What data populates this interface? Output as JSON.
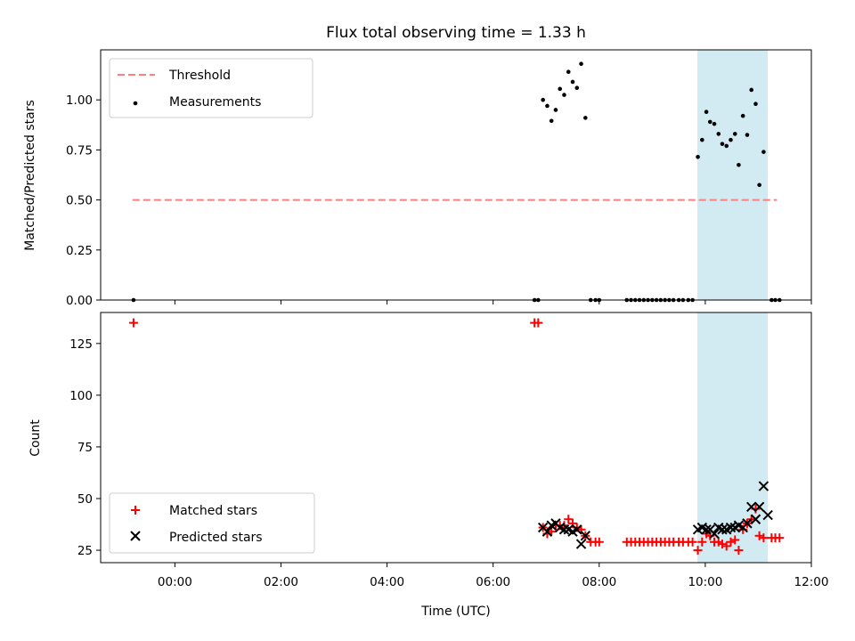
{
  "chart_data": {
    "type": "scatter",
    "title": "Flux total observing time = 1.33 h",
    "x_unit": "hours UTC",
    "xlim": [
      -1.4,
      12.0
    ],
    "x_ticks": [
      {
        "value": 0,
        "label": "00:00"
      },
      {
        "value": 2,
        "label": "02:00"
      },
      {
        "value": 4,
        "label": "04:00"
      },
      {
        "value": 6,
        "label": "06:00"
      },
      {
        "value": 8,
        "label": "08:00"
      },
      {
        "value": 10,
        "label": "10:00"
      },
      {
        "value": 12,
        "label": "12:00"
      }
    ],
    "xlabel": "Time (UTC)",
    "shaded_interval": {
      "x_start": 9.85,
      "x_end": 11.18,
      "color": "#add8e6"
    },
    "top_panel": {
      "ylabel": "Matched/Predicted stars",
      "ylim": [
        0,
        1.25
      ],
      "y_ticks": [
        "0.00",
        "0.25",
        "0.50",
        "0.75",
        "1.00"
      ],
      "y_tick_values": [
        0,
        0.25,
        0.5,
        0.75,
        1.0
      ],
      "legend": {
        "position": "upper left",
        "entries": [
          "Threshold",
          "Measurements"
        ]
      },
      "threshold": {
        "name": "Threshold",
        "y": 0.5,
        "x_start": -0.8,
        "x_end": 11.35,
        "color": "#ff7f7f",
        "style": "dashed"
      },
      "measurements": {
        "name": "Measurements",
        "color": "#000000",
        "points": [
          [
            -0.78,
            0.0
          ],
          [
            6.78,
            0.0
          ],
          [
            6.85,
            0.0
          ],
          [
            6.94,
            1.0
          ],
          [
            7.02,
            0.97
          ],
          [
            7.1,
            0.895
          ],
          [
            7.18,
            0.95
          ],
          [
            7.26,
            1.055
          ],
          [
            7.34,
            1.025
          ],
          [
            7.42,
            1.14
          ],
          [
            7.5,
            1.09
          ],
          [
            7.58,
            1.06
          ],
          [
            7.66,
            1.18
          ],
          [
            7.74,
            0.91
          ],
          [
            7.84,
            0.0
          ],
          [
            7.93,
            0.0
          ],
          [
            8.0,
            0.0
          ],
          [
            8.52,
            0.0
          ],
          [
            8.6,
            0.0
          ],
          [
            8.68,
            0.0
          ],
          [
            8.76,
            0.0
          ],
          [
            8.84,
            0.0
          ],
          [
            8.92,
            0.0
          ],
          [
            9.0,
            0.0
          ],
          [
            9.08,
            0.0
          ],
          [
            9.16,
            0.0
          ],
          [
            9.24,
            0.0
          ],
          [
            9.32,
            0.0
          ],
          [
            9.4,
            0.0
          ],
          [
            9.5,
            0.0
          ],
          [
            9.58,
            0.0
          ],
          [
            9.68,
            0.0
          ],
          [
            9.76,
            0.0
          ],
          [
            9.86,
            0.715
          ],
          [
            9.94,
            0.8
          ],
          [
            10.02,
            0.94
          ],
          [
            10.09,
            0.89
          ],
          [
            10.17,
            0.88
          ],
          [
            10.25,
            0.83
          ],
          [
            10.32,
            0.78
          ],
          [
            10.4,
            0.77
          ],
          [
            10.48,
            0.8
          ],
          [
            10.56,
            0.83
          ],
          [
            10.63,
            0.675
          ],
          [
            10.71,
            0.92
          ],
          [
            10.79,
            0.825
          ],
          [
            10.87,
            1.05
          ],
          [
            10.95,
            0.98
          ],
          [
            11.02,
            0.575
          ],
          [
            11.1,
            0.74
          ],
          [
            11.25,
            0.0
          ],
          [
            11.32,
            0.0
          ],
          [
            11.4,
            0.0
          ]
        ]
      }
    },
    "bottom_panel": {
      "ylabel": "Count",
      "ylim": [
        19,
        140
      ],
      "y_ticks": [
        "25",
        "50",
        "75",
        "100",
        "125"
      ],
      "y_tick_values": [
        25,
        50,
        75,
        100,
        125
      ],
      "legend": {
        "position": "lower left",
        "entries": [
          "Matched stars",
          "Predicted stars"
        ]
      },
      "matched": {
        "name": "Matched stars",
        "color": "#ff0000",
        "points": [
          [
            -0.78,
            135
          ],
          [
            6.78,
            135
          ],
          [
            6.85,
            135
          ],
          [
            6.94,
            36
          ],
          [
            7.02,
            33
          ],
          [
            7.1,
            34
          ],
          [
            7.18,
            37
          ],
          [
            7.26,
            37
          ],
          [
            7.34,
            37
          ],
          [
            7.42,
            40
          ],
          [
            7.5,
            38
          ],
          [
            7.58,
            36
          ],
          [
            7.66,
            35
          ],
          [
            7.74,
            32
          ],
          [
            7.84,
            29
          ],
          [
            7.93,
            29
          ],
          [
            8.0,
            29
          ],
          [
            8.52,
            29
          ],
          [
            8.6,
            29
          ],
          [
            8.68,
            29
          ],
          [
            8.76,
            29
          ],
          [
            8.84,
            29
          ],
          [
            8.92,
            29
          ],
          [
            9.0,
            29
          ],
          [
            9.08,
            29
          ],
          [
            9.16,
            29
          ],
          [
            9.24,
            29
          ],
          [
            9.32,
            29
          ],
          [
            9.4,
            29
          ],
          [
            9.5,
            29
          ],
          [
            9.58,
            29
          ],
          [
            9.68,
            29
          ],
          [
            9.76,
            29
          ],
          [
            9.86,
            25
          ],
          [
            9.94,
            29
          ],
          [
            10.02,
            33
          ],
          [
            10.09,
            32
          ],
          [
            10.17,
            29
          ],
          [
            10.25,
            29
          ],
          [
            10.32,
            28
          ],
          [
            10.4,
            27
          ],
          [
            10.48,
            29
          ],
          [
            10.56,
            30
          ],
          [
            10.63,
            25
          ],
          [
            10.71,
            35
          ],
          [
            10.79,
            38
          ],
          [
            10.87,
            40
          ],
          [
            10.95,
            45
          ],
          [
            11.02,
            32
          ],
          [
            11.1,
            31
          ],
          [
            11.25,
            31
          ],
          [
            11.32,
            31
          ],
          [
            11.4,
            31
          ]
        ]
      },
      "predicted": {
        "name": "Predicted stars",
        "color": "#000000",
        "points": [
          [
            6.94,
            36
          ],
          [
            7.02,
            34
          ],
          [
            7.1,
            37
          ],
          [
            7.18,
            38
          ],
          [
            7.26,
            36
          ],
          [
            7.34,
            35
          ],
          [
            7.42,
            35
          ],
          [
            7.5,
            34
          ],
          [
            7.58,
            35
          ],
          [
            7.66,
            28
          ],
          [
            7.74,
            32
          ],
          [
            9.86,
            35
          ],
          [
            9.94,
            36
          ],
          [
            10.02,
            35
          ],
          [
            10.09,
            35
          ],
          [
            10.17,
            33
          ],
          [
            10.25,
            36
          ],
          [
            10.32,
            35
          ],
          [
            10.4,
            35
          ],
          [
            10.48,
            36
          ],
          [
            10.56,
            36
          ],
          [
            10.63,
            37
          ],
          [
            10.71,
            36
          ],
          [
            10.79,
            38
          ],
          [
            10.87,
            46
          ],
          [
            10.95,
            40
          ],
          [
            11.02,
            46
          ],
          [
            11.1,
            56
          ],
          [
            11.18,
            42
          ]
        ]
      }
    }
  }
}
